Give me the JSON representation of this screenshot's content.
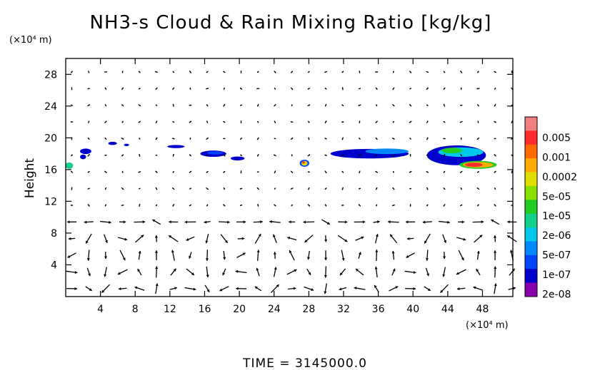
{
  "chart_data": {
    "type": "heatmap",
    "title": "NH3-s Cloud & Rain Mixing Ratio [kg/kg]",
    "ylabel": "Height",
    "y_unit": "(×10⁴ m)",
    "x_unit": "(×10⁴ m)",
    "footer": "TIME = 3145000.0",
    "xlim": [
      0,
      51.5
    ],
    "ylim": [
      0,
      30
    ],
    "x_ticks": [
      4,
      8,
      12,
      16,
      20,
      24,
      28,
      32,
      36,
      40,
      44,
      48
    ],
    "x_tick_labels": [
      "4",
      "8",
      "12",
      "16",
      "20",
      "24",
      "28",
      "32",
      "36",
      "40",
      "44",
      "48"
    ],
    "y_ticks": [
      4,
      8,
      12,
      16,
      20,
      24,
      28
    ],
    "y_tick_labels": [
      "4",
      "8",
      "12",
      "16",
      "20",
      "24",
      "28"
    ],
    "colorbar": {
      "labels": [
        "0.005",
        "0.001",
        "0.0002",
        "5e-05",
        "1e-05",
        "2e-06",
        "5e-07",
        "1e-07",
        "2e-08"
      ],
      "colors": [
        "#f08080",
        "#ff2a2a",
        "#ff6a00",
        "#ffaa00",
        "#e0e000",
        "#88e000",
        "#22cc22",
        "#11d08a",
        "#00c8e8",
        "#0088ff",
        "#0044ff",
        "#0000cc",
        "#8800aa"
      ]
    },
    "features": [
      {
        "x": 0.4,
        "y": 16.5,
        "w": 0.9,
        "h": 0.8,
        "level": 5
      },
      {
        "x": 2.3,
        "y": 18.3,
        "w": 1.3,
        "h": 0.7,
        "level": 1
      },
      {
        "x": 2.0,
        "y": 17.6,
        "w": 0.7,
        "h": 0.6,
        "level": 1
      },
      {
        "x": 5.4,
        "y": 19.3,
        "w": 1.0,
        "h": 0.4,
        "level": 1
      },
      {
        "x": 7.0,
        "y": 19.1,
        "w": 0.6,
        "h": 0.3,
        "level": 1
      },
      {
        "x": 12.7,
        "y": 18.9,
        "w": 2.0,
        "h": 0.4,
        "level": 1
      },
      {
        "x": 17.0,
        "y": 18.0,
        "w": 3.0,
        "h": 0.8,
        "level": 1
      },
      {
        "x": 19.8,
        "y": 17.4,
        "w": 1.6,
        "h": 0.5,
        "level": 1
      },
      {
        "x": 17.2,
        "y": 18.1,
        "w": 1.8,
        "h": 0.4,
        "level": 2
      },
      {
        "x": 27.5,
        "y": 16.8,
        "w": 1.1,
        "h": 0.9,
        "level": 2
      },
      {
        "x": 27.5,
        "y": 16.8,
        "w": 0.7,
        "h": 0.6,
        "level": 8
      },
      {
        "x": 27.4,
        "y": 16.9,
        "w": 0.3,
        "h": 0.3,
        "level": 11
      },
      {
        "x": 35.0,
        "y": 18.0,
        "w": 9.0,
        "h": 1.2,
        "level": 1
      },
      {
        "x": 37.0,
        "y": 18.3,
        "w": 5.0,
        "h": 0.7,
        "level": 3
      },
      {
        "x": 45.0,
        "y": 17.8,
        "w": 6.8,
        "h": 2.5,
        "level": 1
      },
      {
        "x": 45.5,
        "y": 18.2,
        "w": 5.2,
        "h": 1.2,
        "level": 4
      },
      {
        "x": 44.5,
        "y": 18.4,
        "w": 2.4,
        "h": 0.7,
        "level": 6
      },
      {
        "x": 47.5,
        "y": 16.6,
        "w": 4.3,
        "h": 1.0,
        "level": 6
      },
      {
        "x": 47.5,
        "y": 16.6,
        "w": 3.5,
        "h": 0.7,
        "level": 9
      },
      {
        "x": 47.0,
        "y": 16.6,
        "w": 2.0,
        "h": 0.5,
        "level": 11
      }
    ]
  }
}
